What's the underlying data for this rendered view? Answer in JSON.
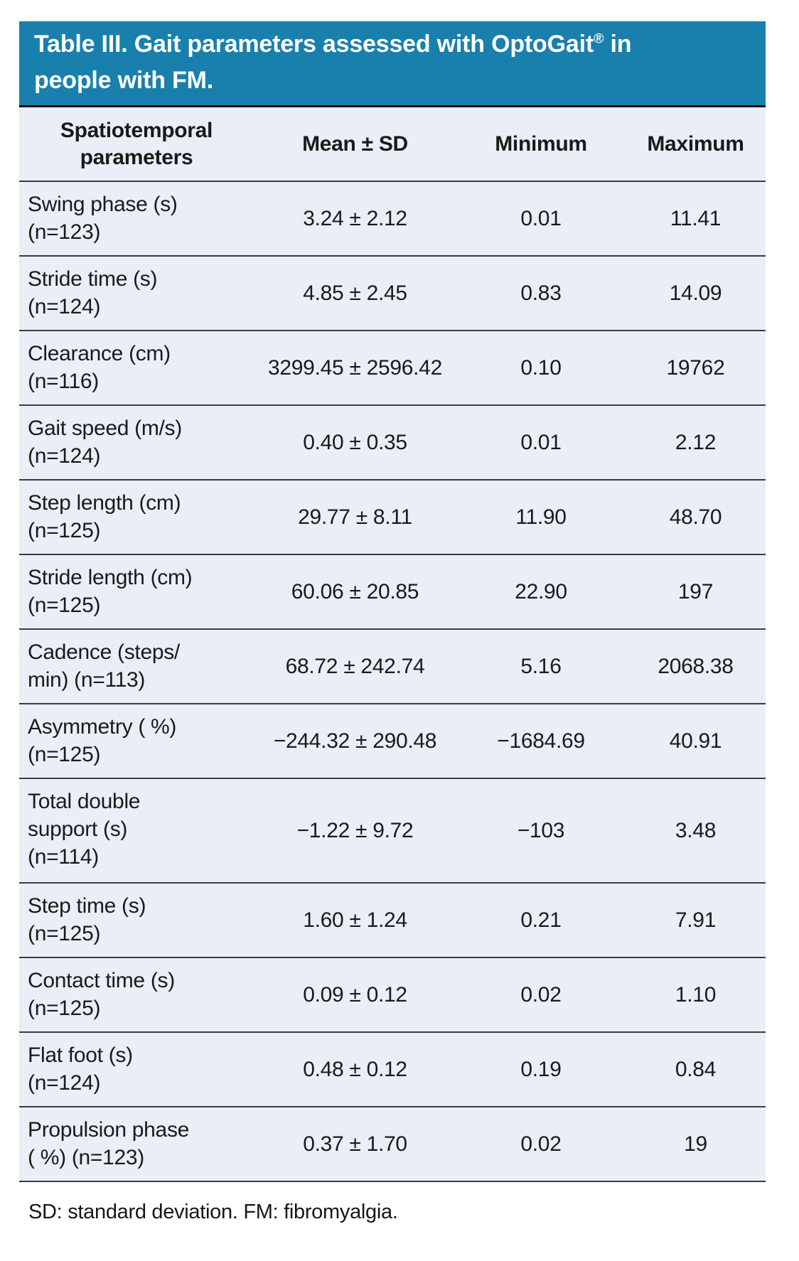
{
  "table": {
    "title": {
      "main": "Table III. Gait parameters assessed with OptoGait",
      "sup": "®",
      "rest": " in\npeople with FM."
    },
    "colors": {
      "title_bg": "#1980AD",
      "body_bg": "#EAEEF6",
      "divider": "#3c3c3c"
    },
    "columns": [
      "Spatiotemporal\nparameters",
      "Mean ± SD",
      "Minimum",
      "Maximum"
    ],
    "rows": [
      {
        "label": "Swing phase (s)\n(n=123)",
        "mean_sd": "3.24 ± 2.12",
        "min": "0.01",
        "max": "11.41"
      },
      {
        "label": "Stride time (s)\n(n=124)",
        "mean_sd": "4.85 ± 2.45",
        "min": "0.83",
        "max": "14.09"
      },
      {
        "label": "Clearance (cm)\n(n=116)",
        "mean_sd": "3299.45 ± 2596.42",
        "min": "0.10",
        "max": "19762"
      },
      {
        "label": "Gait speed (m/s)\n(n=124)",
        "mean_sd": "0.40 ± 0.35",
        "min": "0.01",
        "max": "2.12"
      },
      {
        "label": "Step length (cm)\n(n=125)",
        "mean_sd": "29.77 ± 8.11",
        "min": "11.90",
        "max": "48.70"
      },
      {
        "label": "Stride length (cm)\n(n=125)",
        "mean_sd": "60.06 ± 20.85",
        "min": "22.90",
        "max": "197"
      },
      {
        "label": "Cadence (steps/\nmin) (n=113)",
        "mean_sd": "68.72 ± 242.74",
        "min": "5.16",
        "max": "2068.38"
      },
      {
        "label": "Asymmetry ( %)\n(n=125)",
        "mean_sd": "−244.32 ± 290.48",
        "min": "−1684.69",
        "max": "40.91"
      },
      {
        "label": "Total double\nsupport (s)\n(n=114)",
        "mean_sd": "−1.22 ± 9.72",
        "min": "−103",
        "max": "3.48"
      },
      {
        "label": "Step time (s)\n(n=125)",
        "mean_sd": "1.60 ± 1.24",
        "min": "0.21",
        "max": "7.91"
      },
      {
        "label": "Contact time (s)\n(n=125)",
        "mean_sd": "0.09 ± 0.12",
        "min": "0.02",
        "max": "1.10"
      },
      {
        "label": "Flat foot (s)\n(n=124)",
        "mean_sd": "0.48 ± 0.12",
        "min": "0.19",
        "max": "0.84"
      },
      {
        "label": "Propulsion phase\n( %) (n=123)",
        "mean_sd": "0.37 ± 1.70",
        "min": "0.02",
        "max": "19"
      }
    ],
    "footnote": "SD: standard deviation. FM: fibromyalgia."
  }
}
